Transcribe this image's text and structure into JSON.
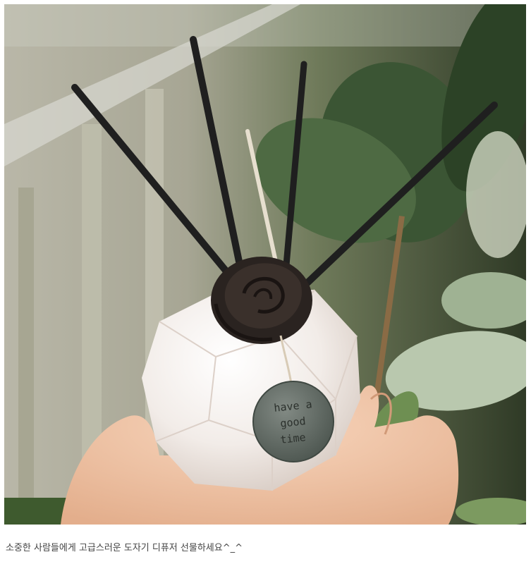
{
  "photo": {
    "tag_text_lines": [
      "have a",
      "good",
      "time"
    ],
    "colors": {
      "background": "#ffffff",
      "leaf": "#3f5a3a",
      "vase": "#f2ece8",
      "rose": "#2a2320",
      "reed": "#1f1f1f",
      "hand": "#f1c7a8",
      "tag": "#5e6660"
    }
  },
  "caption": "소중한 사람들에게 고급스러운 도자기 디퓨저 선물하세요^_^"
}
